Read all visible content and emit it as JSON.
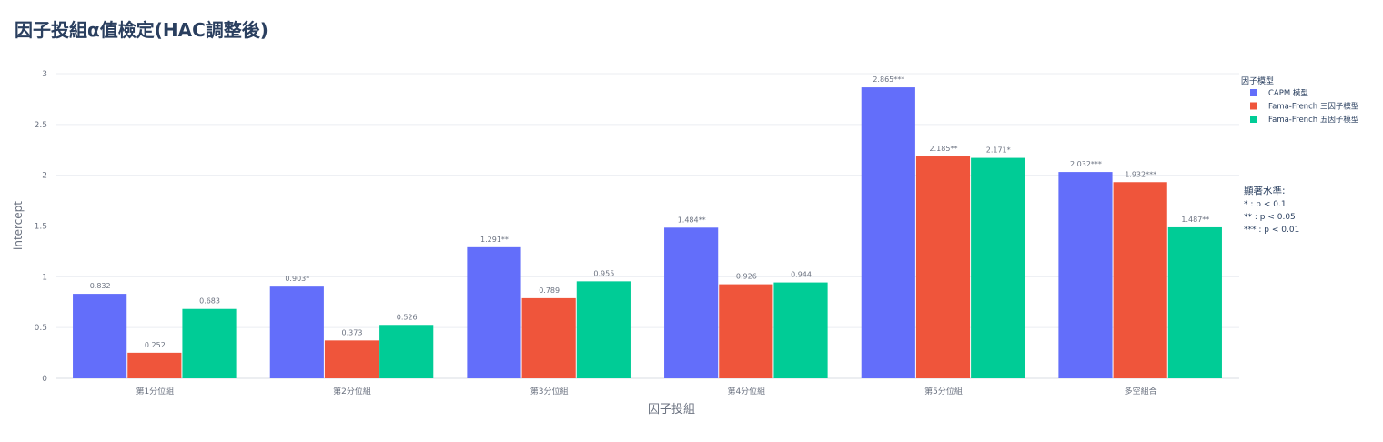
{
  "chart_data": {
    "type": "bar",
    "title": "因子投組α值檢定(HAC調整後)",
    "xlabel": "因子投組",
    "ylabel": "intercept",
    "categories": [
      "第1分位組",
      "第2分位組",
      "第3分位組",
      "第4分位組",
      "第5分位組",
      "多空組合"
    ],
    "ylim": [
      0,
      3
    ],
    "yticks": [
      0,
      0.5,
      1,
      1.5,
      2,
      2.5,
      3
    ],
    "ytick_labels": [
      "0",
      "0.5",
      "1",
      "1.5",
      "2",
      "2.5",
      "3"
    ],
    "grid": true,
    "legend_title": "因子模型",
    "legend_position": "right",
    "series": [
      {
        "name": "CAPM 模型",
        "color": "#636efa",
        "values": [
          0.832,
          0.903,
          1.291,
          1.484,
          2.865,
          2.032
        ],
        "labels": [
          "0.832",
          "0.903*",
          "1.291**",
          "1.484**",
          "2.865***",
          "2.032***"
        ]
      },
      {
        "name": "Fama-French 三因子模型",
        "color": "#ef553b",
        "values": [
          0.252,
          0.373,
          0.789,
          0.926,
          2.185,
          1.932
        ],
        "labels": [
          "0.252",
          "0.373",
          "0.789",
          "0.926",
          "2.185**",
          "1.932***"
        ]
      },
      {
        "name": "Fama-French 五因子模型",
        "color": "#00cc96",
        "values": [
          0.683,
          0.526,
          0.955,
          0.944,
          2.171,
          1.487
        ],
        "labels": [
          "0.683",
          "0.526",
          "0.955",
          "0.944",
          "2.171*",
          "1.487**"
        ]
      }
    ],
    "annotation": {
      "heading": "顯著水準:",
      "lines": [
        "* : p < 0.1",
        "** : p < 0.05",
        "*** : p < 0.01"
      ]
    }
  }
}
